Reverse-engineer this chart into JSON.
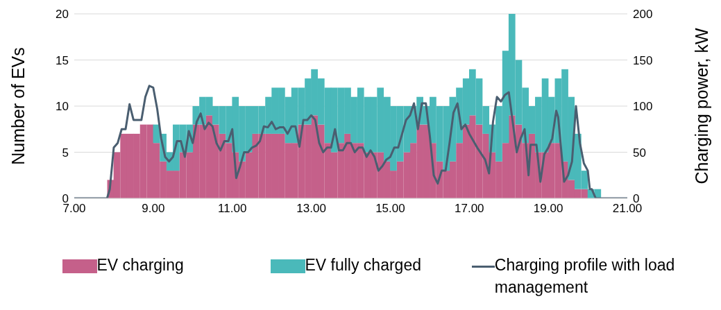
{
  "chart_data": {
    "type": "bar",
    "stacked": true,
    "xlabel": null,
    "ylabel": "Number of EVs",
    "y2label": "Charging power, kW",
    "x": [
      7.92,
      8.08,
      8.25,
      8.42,
      8.58,
      8.75,
      8.92,
      9.08,
      9.25,
      9.42,
      9.58,
      9.75,
      9.92,
      10.08,
      10.25,
      10.42,
      10.58,
      10.75,
      10.92,
      11.08,
      11.25,
      11.42,
      11.58,
      11.75,
      11.92,
      12.08,
      12.25,
      12.42,
      12.58,
      12.75,
      12.92,
      13.08,
      13.25,
      13.42,
      13.58,
      13.75,
      13.92,
      14.08,
      14.25,
      14.42,
      14.58,
      14.75,
      14.92,
      15.08,
      15.25,
      15.42,
      15.58,
      15.75,
      15.92,
      16.08,
      16.25,
      16.42,
      16.58,
      16.75,
      16.92,
      17.08,
      17.25,
      17.42,
      17.58,
      17.75,
      17.92,
      18.08,
      18.25,
      18.42,
      18.58,
      18.75,
      18.92,
      19.08,
      19.25,
      19.42,
      19.58,
      19.75,
      19.92,
      20.08,
      20.25
    ],
    "series": [
      {
        "name": "EV charging",
        "color": "#c5608a",
        "values": [
          2,
          5,
          7,
          7,
          7,
          8,
          8,
          6,
          4,
          3,
          3,
          5,
          5,
          8,
          8,
          9,
          8,
          7,
          6,
          5,
          4,
          5,
          7,
          7,
          7,
          7,
          7,
          6,
          6,
          8,
          8,
          9,
          8,
          6,
          5,
          6,
          7,
          6,
          6,
          5,
          5,
          5,
          4,
          3,
          4,
          5,
          6,
          8,
          8,
          6,
          4,
          3,
          4,
          6,
          8,
          9,
          8,
          7,
          5,
          4,
          6,
          9,
          8,
          6,
          7,
          5,
          5,
          6,
          6,
          4,
          2,
          1,
          1,
          0,
          0
        ]
      },
      {
        "name": "EV fully charged",
        "color": "#4ab9ba",
        "values": [
          0,
          0,
          0,
          0,
          0,
          0,
          0,
          2,
          3,
          2,
          5,
          3,
          3,
          2,
          3,
          2,
          2,
          3,
          4,
          6,
          6,
          5,
          3,
          3,
          4,
          5,
          5,
          5,
          6,
          4,
          5,
          5,
          5,
          6,
          7,
          6,
          5,
          5,
          6,
          6,
          6,
          7,
          7,
          7,
          6,
          5,
          4,
          3,
          2,
          5,
          6,
          7,
          7,
          6,
          5,
          5,
          5,
          3,
          3,
          6,
          10,
          11,
          7,
          6,
          3,
          6,
          8,
          5,
          7,
          10,
          9,
          6,
          2,
          1,
          1
        ]
      },
      {
        "name": "Charging profile with load management",
        "type": "line",
        "axis": "y2",
        "color": "#4a5e70",
        "x": [
          7,
          7.83,
          7.9,
          8,
          8.1,
          8.2,
          8.3,
          8.4,
          8.5,
          8.6,
          8.7,
          8.8,
          8.9,
          9,
          9.1,
          9.2,
          9.3,
          9.4,
          9.5,
          9.6,
          9.7,
          9.8,
          9.9,
          10,
          10.1,
          10.2,
          10.3,
          10.4,
          10.5,
          10.6,
          10.7,
          10.8,
          10.9,
          11,
          11.1,
          11.2,
          11.3,
          11.4,
          11.5,
          11.6,
          11.7,
          11.8,
          11.9,
          12,
          12.1,
          12.2,
          12.3,
          12.4,
          12.5,
          12.6,
          12.7,
          12.8,
          12.9,
          13,
          13.1,
          13.2,
          13.3,
          13.4,
          13.5,
          13.6,
          13.7,
          13.8,
          13.9,
          14,
          14.1,
          14.2,
          14.3,
          14.4,
          14.5,
          14.6,
          14.7,
          14.8,
          14.9,
          15,
          15.1,
          15.2,
          15.3,
          15.4,
          15.5,
          15.6,
          15.7,
          15.8,
          15.9,
          16,
          16.1,
          16.2,
          16.3,
          16.4,
          16.5,
          16.6,
          16.7,
          16.8,
          16.9,
          17,
          17.2,
          17.4,
          17.5,
          17.6,
          17.7,
          17.8,
          17.9,
          18,
          18.2,
          18.3,
          18.4,
          18.5,
          18.55,
          18.7,
          18.8,
          18.9,
          19,
          19.1,
          19.2,
          19.25,
          19.4,
          19.5,
          19.6,
          19.7,
          19.8,
          19.9,
          20,
          20.05,
          20.1,
          20.2,
          21
        ],
        "values": [
          0,
          0,
          10,
          55,
          60,
          75,
          75,
          102,
          85,
          85,
          85,
          110,
          122,
          120,
          97,
          65,
          45,
          40,
          45,
          62,
          62,
          45,
          73,
          60,
          83,
          92,
          75,
          82,
          78,
          60,
          52,
          62,
          62,
          75,
          22,
          35,
          50,
          50,
          55,
          57,
          62,
          78,
          77,
          83,
          75,
          77,
          77,
          70,
          78,
          78,
          56,
          85,
          85,
          90,
          85,
          60,
          50,
          55,
          55,
          75,
          52,
          52,
          60,
          60,
          50,
          55,
          55,
          45,
          52,
          45,
          30,
          35,
          42,
          45,
          55,
          55,
          70,
          85,
          90,
          103,
          75,
          103,
          103,
          68,
          25,
          16,
          30,
          30,
          60,
          93,
          103,
          75,
          80,
          70,
          55,
          42,
          27,
          83,
          110,
          105,
          112,
          115,
          50,
          65,
          75,
          25,
          58,
          58,
          18,
          48,
          55,
          65,
          95,
          88,
          18,
          25,
          40,
          100,
          60,
          38,
          30,
          10,
          10,
          0,
          0
        ]
      }
    ],
    "xlim": [
      7,
      21
    ],
    "xticks": [
      {
        "value": 7,
        "label": "7.00"
      },
      {
        "value": 9,
        "label": "9.00"
      },
      {
        "value": 11,
        "label": "11.00"
      },
      {
        "value": 13,
        "label": "13.00"
      },
      {
        "value": 15,
        "label": "15.00"
      },
      {
        "value": 17,
        "label": "17.00"
      },
      {
        "value": 19,
        "label": "19.00"
      },
      {
        "value": 21,
        "label": "21.00"
      }
    ],
    "ylim": [
      0,
      20
    ],
    "yticks": [
      0,
      5,
      10,
      15,
      20
    ],
    "y2lim": [
      0,
      200
    ],
    "y2ticks": [
      0,
      50,
      100,
      150,
      200
    ],
    "grid": "y",
    "legend": "bottom",
    "marker": "none",
    "line_style": "solid"
  }
}
